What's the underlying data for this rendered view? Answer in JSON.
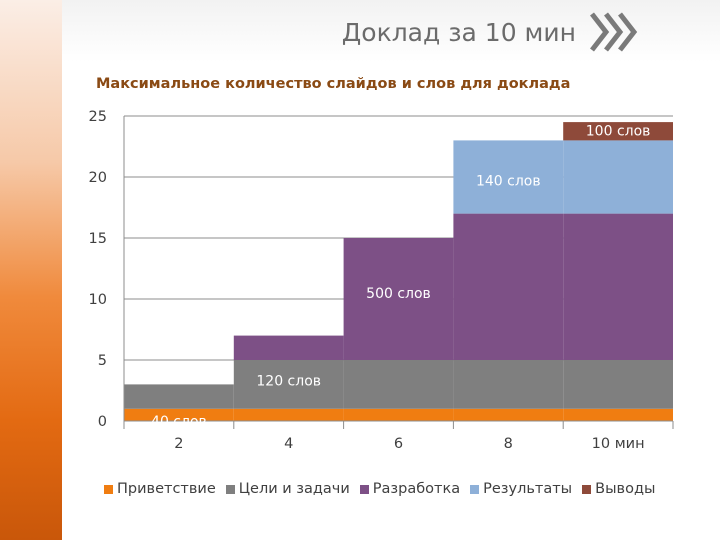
{
  "slide": {
    "title": "Доклад за 10 мин"
  },
  "colors": {
    "accent": "#e8730f",
    "title_text": "#6b6b6b",
    "subtitle_text": "#8a4a14"
  },
  "chart_data": {
    "type": "bar",
    "title": "Максимальное  количество слайдов и слов для доклада",
    "xlabel": "",
    "ylabel": "",
    "categories": [
      "2",
      "4",
      "6",
      "8",
      "10 мин"
    ],
    "ylim": [
      0,
      25
    ],
    "yticks": [
      0,
      5,
      10,
      15,
      20,
      25
    ],
    "grid": true,
    "legend_position": "bottom",
    "series": [
      {
        "name": "Приветствие",
        "color": "#f07d11",
        "values": [
          1,
          1,
          1,
          1,
          1
        ]
      },
      {
        "name": "Цели и задачи",
        "color": "#7f7f7f",
        "values": [
          2,
          4,
          4,
          4,
          4
        ]
      },
      {
        "name": "Разработка",
        "color": "#7d5086",
        "values": [
          0,
          2,
          10,
          12,
          12
        ]
      },
      {
        "name": "Результаты",
        "color": "#8eb0d8",
        "values": [
          0,
          0,
          0,
          6,
          6
        ]
      },
      {
        "name": "Выводы",
        "color": "#8e4a3a",
        "values": [
          0,
          0,
          0,
          0,
          1.5
        ]
      }
    ],
    "annotations": [
      {
        "text": "40 слов",
        "x": "2",
        "y": 0
      },
      {
        "text": "120 слов",
        "x": "4",
        "y": 3.3
      },
      {
        "text": "500 слов",
        "x": "6",
        "y": 10.5
      },
      {
        "text": "140 слов",
        "x": "8",
        "y": 19.7
      },
      {
        "text": "100 слов",
        "x": "10 мин",
        "y": 23.8
      }
    ]
  }
}
